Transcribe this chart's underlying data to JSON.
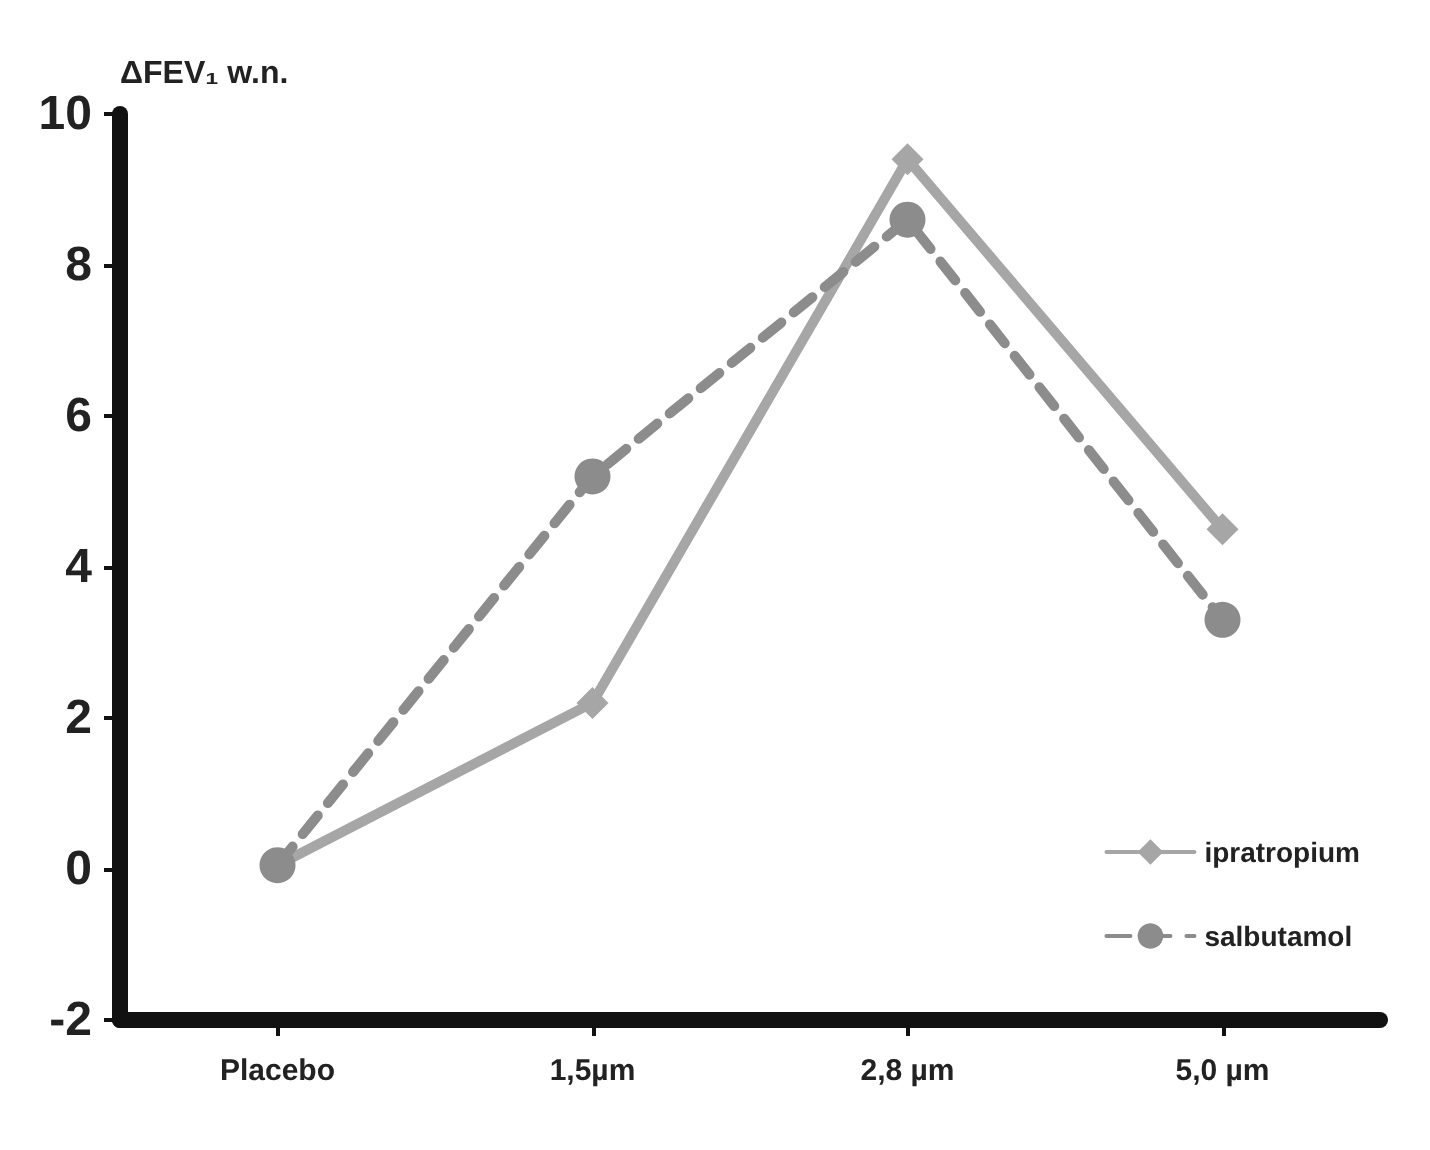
{
  "chart_data": {
    "type": "line",
    "ylabel": "ΔFEV₁ w.n.",
    "categories": [
      "Placebo",
      "1,5µm",
      "2,8 µm",
      "5,0 µm"
    ],
    "series": [
      {
        "name": "ipratropium",
        "color": "#a6a6a6",
        "values": [
          0.05,
          2.2,
          9.4,
          4.5
        ],
        "marker": "diamond",
        "line_style": "solid"
      },
      {
        "name": "salbutamol",
        "color": "#8c8c8c",
        "values": [
          0.05,
          5.2,
          8.6,
          3.3
        ],
        "marker": "circle",
        "line_style": "dashed"
      }
    ],
    "ylim": [
      -2,
      10
    ],
    "yticks": [
      -2,
      0,
      2,
      4,
      6,
      8,
      10
    ],
    "grid": false,
    "legend": "bottom right"
  }
}
